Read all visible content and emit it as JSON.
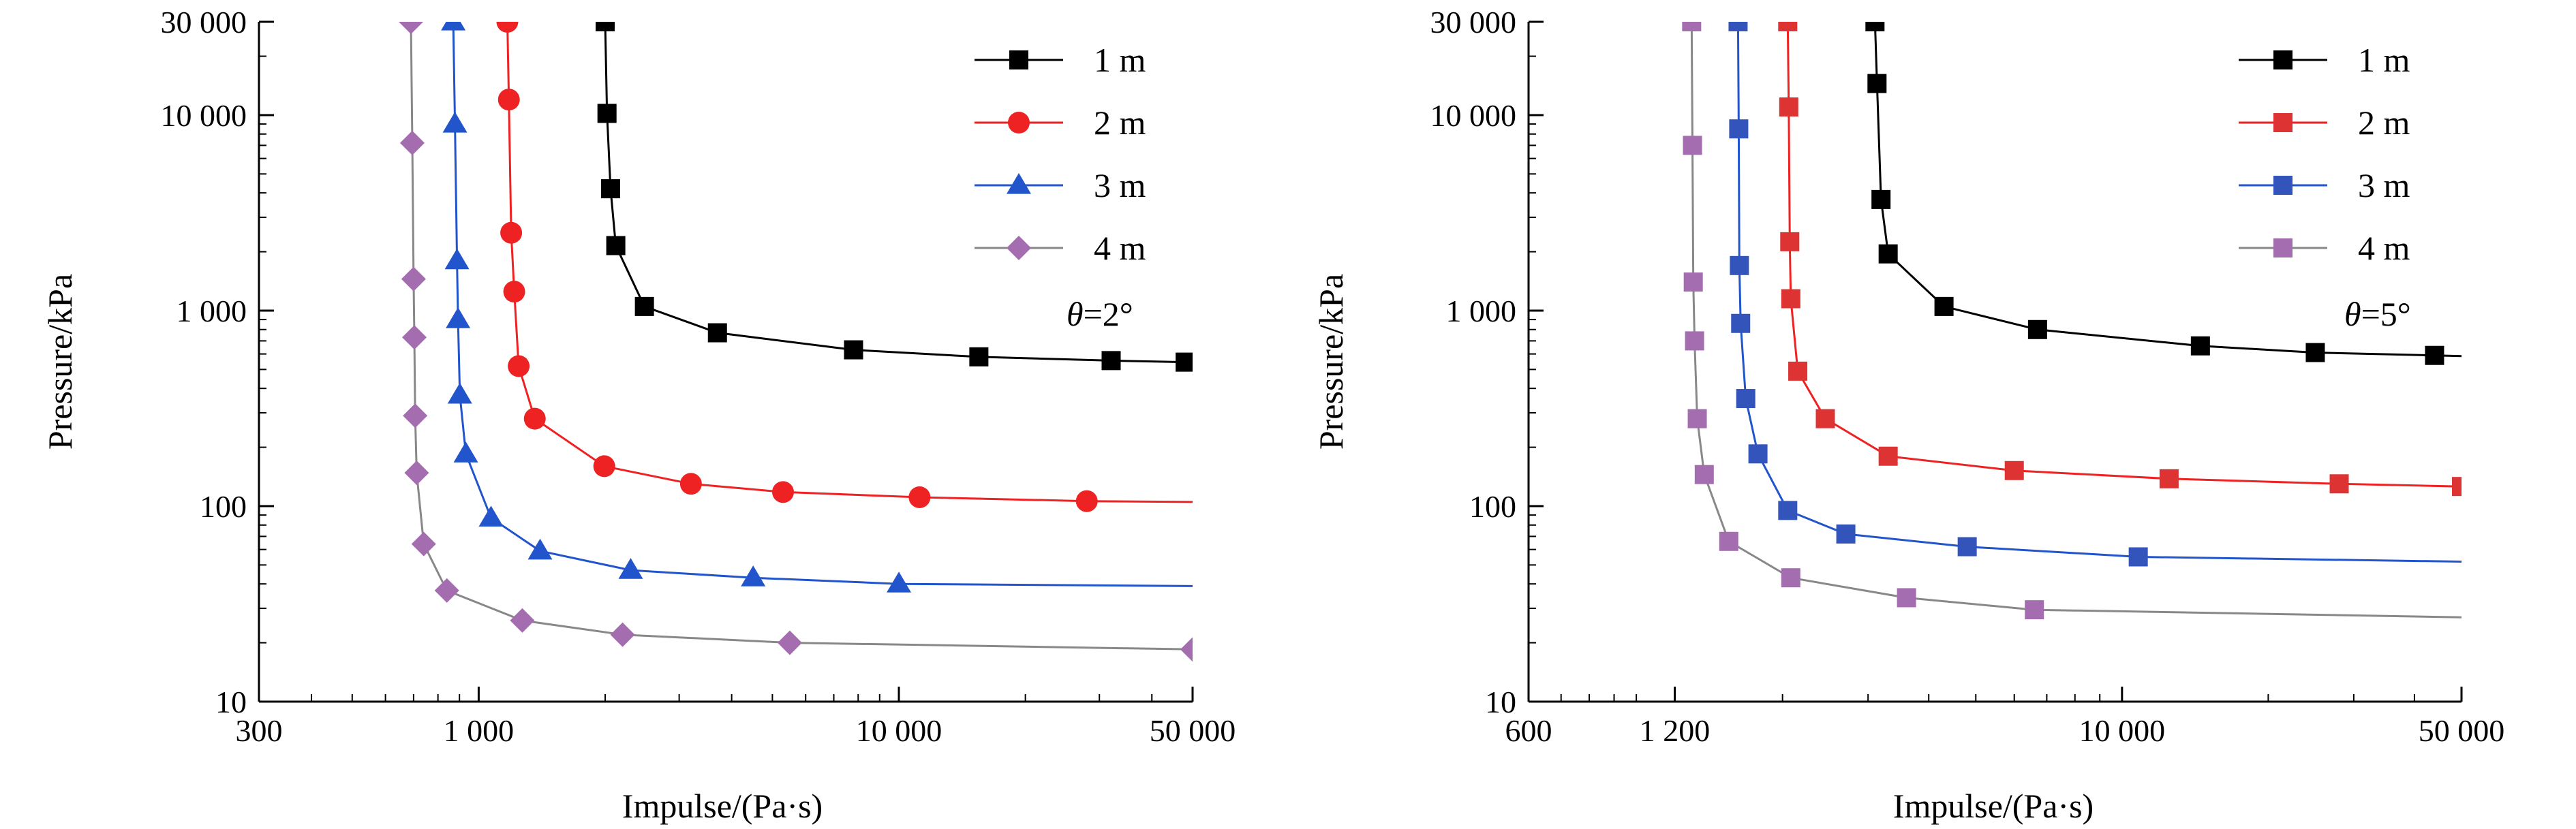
{
  "chart_data": [
    {
      "type": "line",
      "xlabel": "Impulse/(Pa·s)",
      "ylabel": "Pressure/kPa",
      "x_scale": "log",
      "y_scale": "log",
      "xlim": [
        300,
        50000
      ],
      "ylim": [
        10,
        30000
      ],
      "x_tick_values": [
        300,
        1000,
        10000,
        50000
      ],
      "x_tick_labels": [
        "300",
        "1 000",
        "10 000",
        "50 000"
      ],
      "y_tick_values": [
        10,
        100,
        1000,
        10000,
        30000
      ],
      "y_tick_labels": [
        "10",
        "100",
        "1 000",
        "10 000",
        "30 000"
      ],
      "annotation": {
        "symbol": "θ",
        "text": "=2°"
      },
      "legend_position": "top-right",
      "series": [
        {
          "name": "1 m",
          "color": "#000000",
          "marker": "square",
          "x": [
            2000,
            2020,
            2060,
            2120,
            2480,
            3700,
            7800,
            15500,
            32000,
            48000
          ],
          "y": [
            30000,
            10200,
            4200,
            2150,
            1050,
            770,
            630,
            580,
            555,
            545
          ],
          "end": [
            50000,
            540
          ]
        },
        {
          "name": "2 m",
          "color": "#ee2222",
          "marker": "circle",
          "x": [
            1170,
            1180,
            1195,
            1215,
            1245,
            1360,
            1990,
            3200,
            5300,
            11200,
            28000
          ],
          "y": [
            30000,
            12000,
            2500,
            1250,
            520,
            280,
            160,
            130,
            118,
            111,
            106
          ],
          "end": [
            50000,
            105
          ]
        },
        {
          "name": "3 m",
          "color": "#2255cc",
          "marker": "triangle",
          "x": [
            870,
            878,
            888,
            893,
            902,
            932,
            1070,
            1400,
            2300,
            4500,
            10000
          ],
          "y": [
            30000,
            9000,
            1800,
            900,
            370,
            185,
            87,
            59,
            47,
            43,
            40
          ],
          "end": [
            50000,
            39
          ]
        },
        {
          "name": "4 m",
          "color": "#888888",
          "marker": "diamond",
          "marker_color": "#a46db0",
          "x": [
            690,
            695,
            700,
            703,
            706,
            712,
            740,
            840,
            1270,
            2200,
            5500,
            50000
          ],
          "y": [
            30000,
            7200,
            1450,
            730,
            290,
            148,
            64,
            37,
            26,
            22,
            20,
            18.5
          ],
          "end": [
            50000,
            18.5
          ]
        }
      ]
    },
    {
      "type": "line",
      "xlabel": "Impulse/(Pa·s)",
      "ylabel": "Pressure/kPa",
      "x_scale": "log",
      "y_scale": "log",
      "xlim": [
        600,
        50000
      ],
      "ylim": [
        10,
        30000
      ],
      "x_tick_values": [
        600,
        1200,
        10000,
        50000
      ],
      "x_tick_labels": [
        "600",
        "1 200",
        "10 000",
        "50 000"
      ],
      "y_tick_values": [
        10,
        100,
        1000,
        10000,
        30000
      ],
      "y_tick_labels": [
        "10",
        "100",
        "1 000",
        "10 000",
        "30 000"
      ],
      "annotation": {
        "symbol": "θ",
        "text": "=5°"
      },
      "legend_position": "top-right",
      "series": [
        {
          "name": "1 m",
          "color": "#000000",
          "marker": "square",
          "x": [
            3100,
            3130,
            3190,
            3300,
            4300,
            6700,
            14500,
            25000,
            44000
          ],
          "y": [
            30000,
            14500,
            3700,
            1950,
            1050,
            800,
            660,
            610,
            590
          ],
          "end": [
            50000,
            585
          ]
        },
        {
          "name": "2 m",
          "color": "#ee2222",
          "marker": "square",
          "marker_color": "#dd3333",
          "x": [
            2050,
            2060,
            2070,
            2080,
            2150,
            2450,
            3300,
            6000,
            12500,
            28000,
            50000
          ],
          "y": [
            30000,
            11000,
            2250,
            1150,
            490,
            280,
            180,
            152,
            138,
            130,
            126
          ],
          "end": [
            50000,
            126
          ]
        },
        {
          "name": "3 m",
          "color": "#2255cc",
          "marker": "square",
          "marker_color": "#3355bb",
          "x": [
            1620,
            1625,
            1630,
            1640,
            1680,
            1780,
            2050,
            2700,
            4800,
            10800
          ],
          "y": [
            30000,
            8500,
            1700,
            860,
            355,
            185,
            95,
            72,
            62,
            55
          ],
          "end": [
            50000,
            52
          ]
        },
        {
          "name": "4 m",
          "color": "#888888",
          "marker": "square",
          "marker_color": "#a46db0",
          "x": [
            1300,
            1305,
            1310,
            1318,
            1335,
            1380,
            1550,
            2080,
            3600,
            6600
          ],
          "y": [
            30000,
            7000,
            1400,
            700,
            280,
            145,
            66,
            43,
            34,
            29.5
          ],
          "end": [
            50000,
            27
          ]
        }
      ]
    }
  ]
}
